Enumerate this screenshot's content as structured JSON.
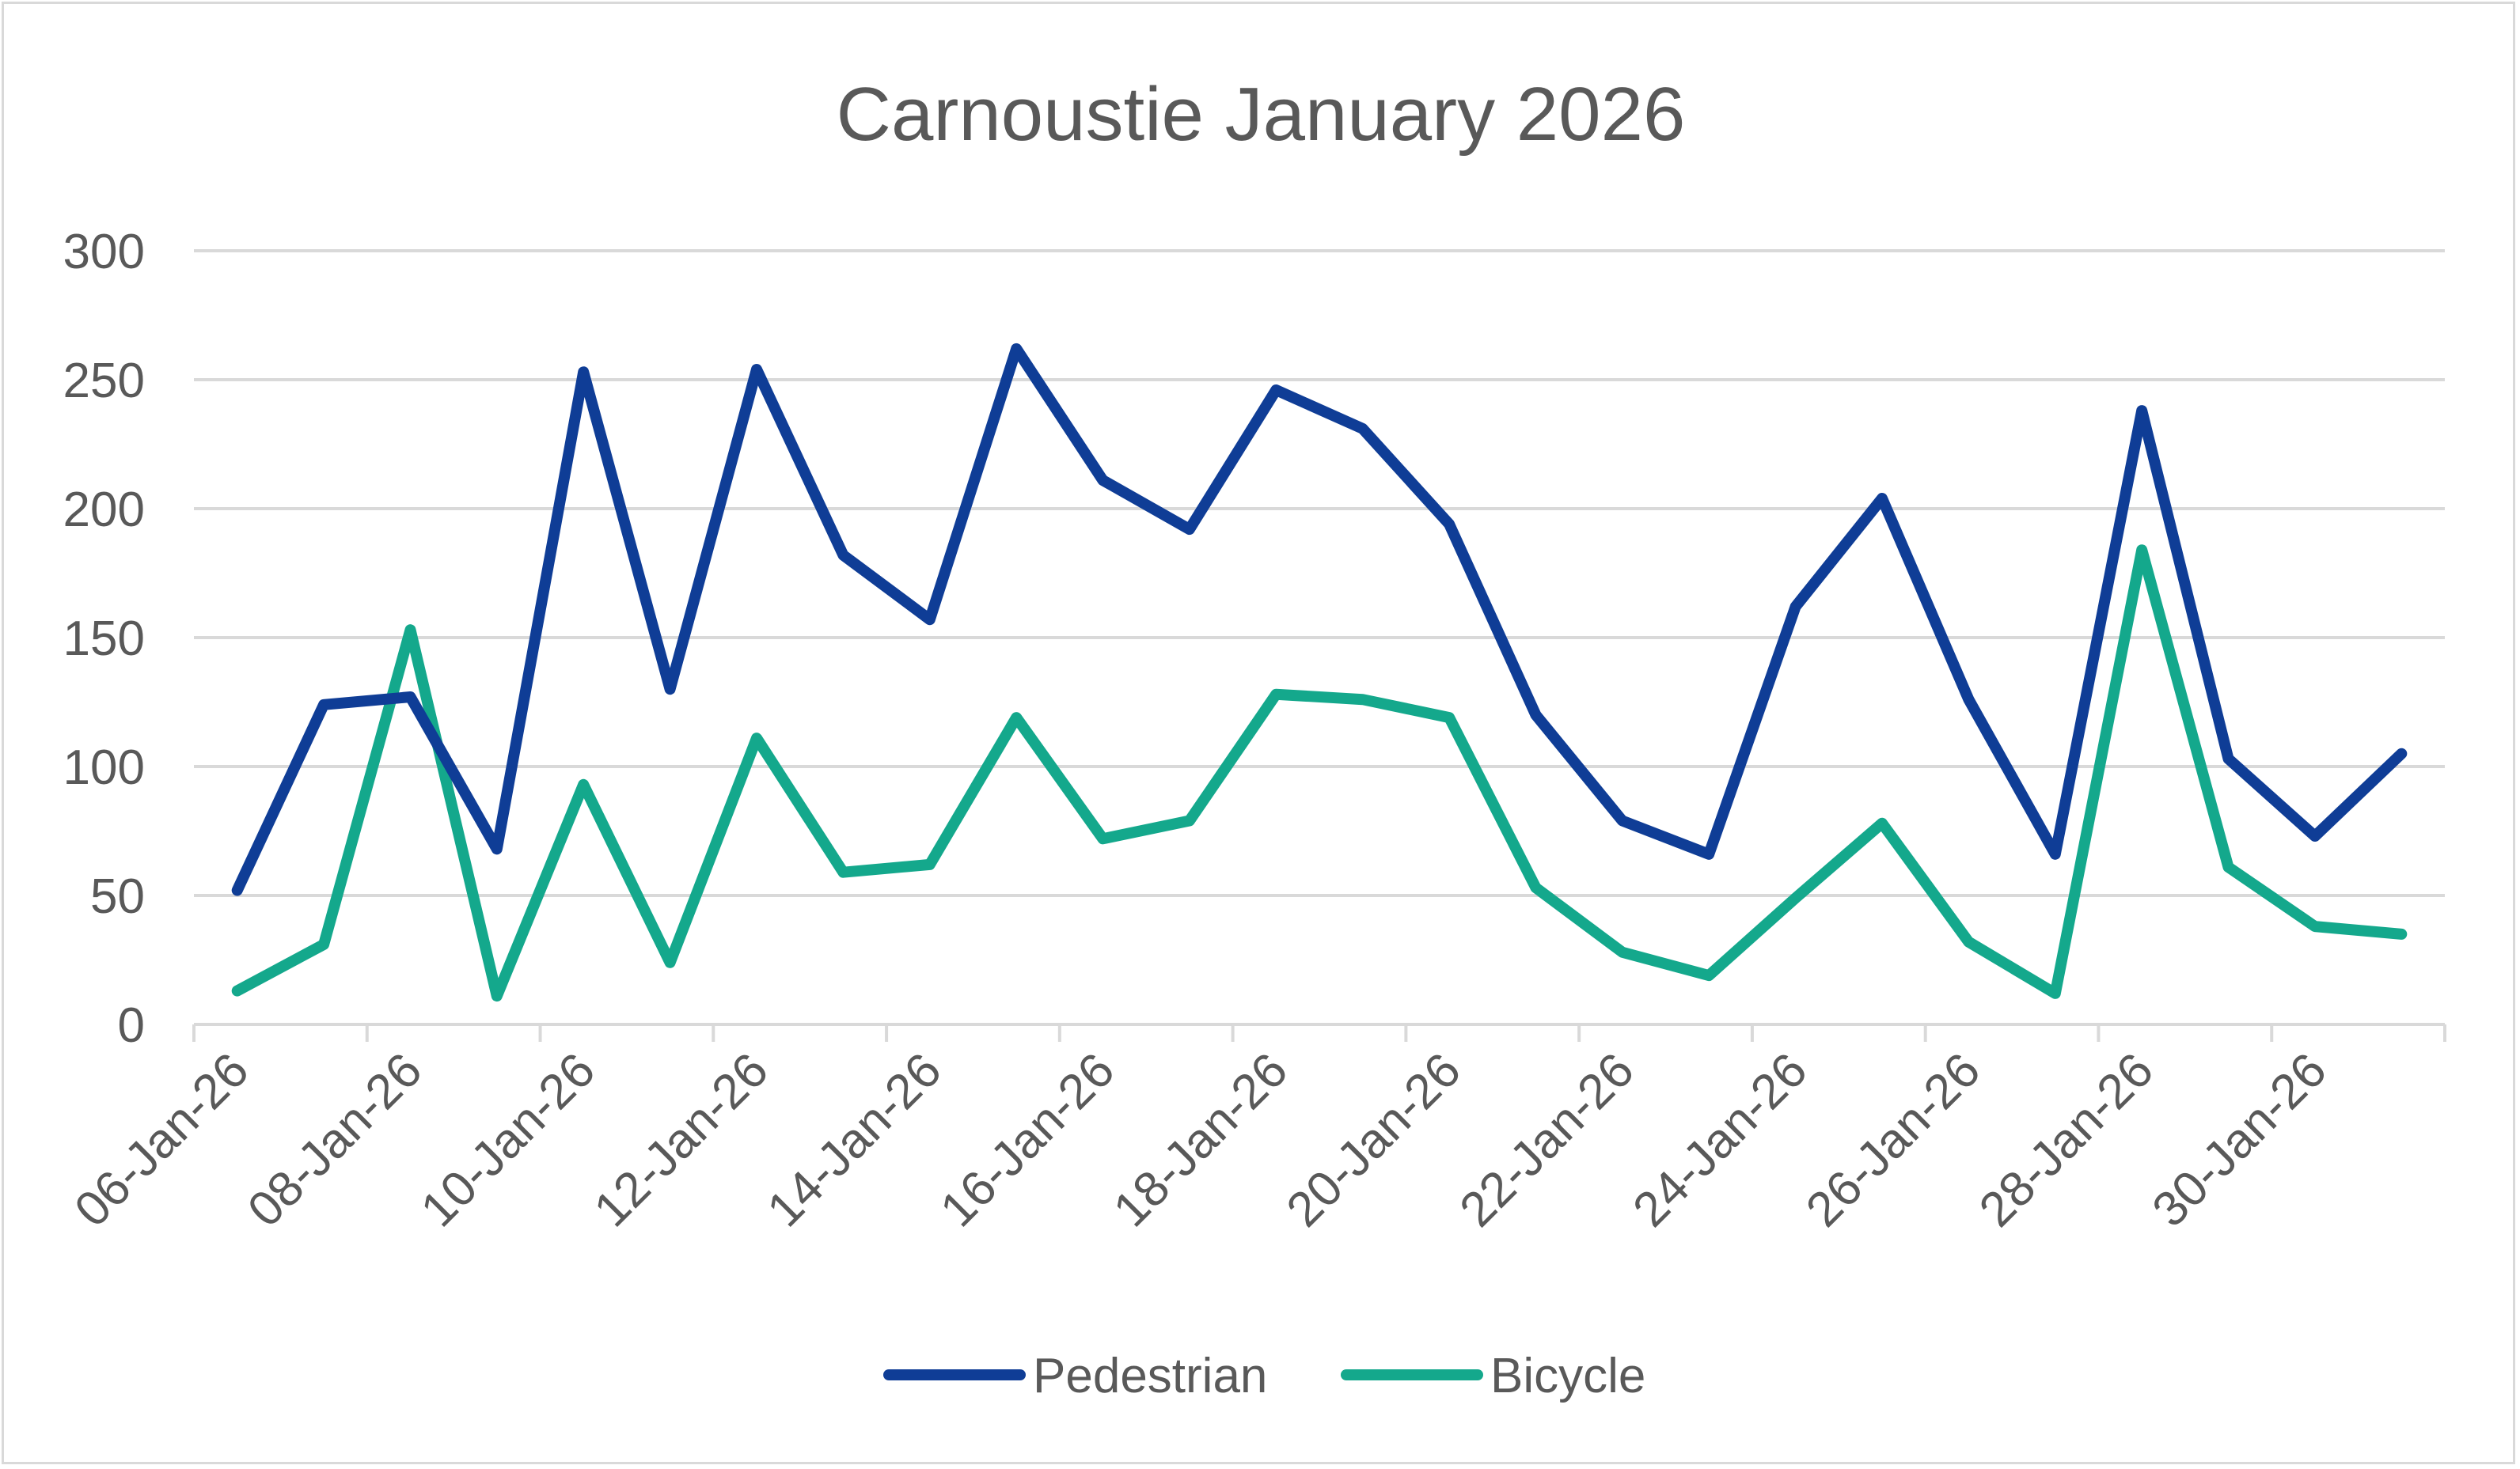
{
  "chart_data": {
    "type": "line",
    "title": "Carnoustie January 2026",
    "xlabel": "",
    "ylabel": "",
    "ylim": [
      0,
      300
    ],
    "yticks": [
      0,
      50,
      100,
      150,
      200,
      250,
      300
    ],
    "grid": true,
    "legend_position": "bottom",
    "x": [
      "06-Jan-26",
      "07-Jan-26",
      "08-Jan-26",
      "09-Jan-26",
      "10-Jan-26",
      "11-Jan-26",
      "12-Jan-26",
      "13-Jan-26",
      "14-Jan-26",
      "15-Jan-26",
      "16-Jan-26",
      "17-Jan-26",
      "18-Jan-26",
      "19-Jan-26",
      "20-Jan-26",
      "21-Jan-26",
      "22-Jan-26",
      "23-Jan-26",
      "24-Jan-26",
      "25-Jan-26",
      "26-Jan-26",
      "27-Jan-26",
      "28-Jan-26",
      "29-Jan-26",
      "30-Jan-26",
      "31-Jan-26"
    ],
    "xtick_labels": [
      "06-Jan-26",
      "08-Jan-26",
      "10-Jan-26",
      "12-Jan-26",
      "14-Jan-26",
      "16-Jan-26",
      "18-Jan-26",
      "20-Jan-26",
      "22-Jan-26",
      "24-Jan-26",
      "26-Jan-26",
      "28-Jan-26",
      "30-Jan-26"
    ],
    "series": [
      {
        "name": "Pedestrian",
        "color": "#0f3d96",
        "values": [
          52,
          124,
          127,
          68,
          253,
          130,
          254,
          182,
          157,
          262,
          211,
          192,
          246,
          231,
          194,
          120,
          79,
          66,
          162,
          204,
          126,
          66,
          238,
          103,
          73,
          105
        ]
      },
      {
        "name": "Bicycle",
        "color": "#14a88c",
        "values": [
          13,
          31,
          153,
          11,
          93,
          24,
          111,
          59,
          62,
          119,
          72,
          79,
          128,
          126,
          119,
          53,
          28,
          19,
          49,
          78,
          32,
          12,
          184,
          61,
          38,
          35
        ]
      }
    ]
  }
}
